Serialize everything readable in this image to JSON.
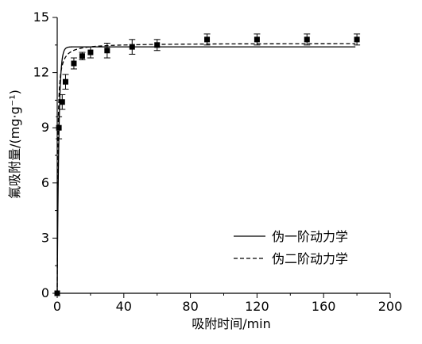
{
  "chart_data": {
    "type": "scatter",
    "xlabel": "吸附时间/min",
    "ylabel": "氟吸附量/(mg·g⁻¹)",
    "xlim": [
      0,
      200
    ],
    "ylim": [
      0,
      15
    ],
    "x_ticks": [
      "0",
      "40",
      "80",
      "120",
      "160",
      "200"
    ],
    "y_ticks": [
      "0",
      "3",
      "6",
      "9",
      "12",
      "15"
    ],
    "grid": false,
    "legend_position": "bottom-right",
    "series": [
      {
        "kind": "points",
        "marker": "square",
        "x": [
          0,
          1,
          3,
          5,
          10,
          15,
          20,
          30,
          45,
          60,
          90,
          120,
          150,
          180
        ],
        "y": [
          0,
          9.0,
          10.4,
          11.5,
          12.5,
          12.9,
          13.1,
          13.2,
          13.4,
          13.5,
          13.8,
          13.8,
          13.8,
          13.8
        ],
        "err": [
          0,
          0.6,
          0.4,
          0.4,
          0.3,
          0.2,
          0.3,
          0.4,
          0.4,
          0.3,
          0.3,
          0.3,
          0.3,
          0.3
        ]
      },
      {
        "kind": "line",
        "name": "伪一阶动力学",
        "style": "solid",
        "model": "pfo",
        "qe": 13.4,
        "k": 1.0
      },
      {
        "kind": "line",
        "name": "伪二阶动力学",
        "style": "dashed",
        "model": "pso",
        "qe": 13.6,
        "k": 0.25
      }
    ]
  }
}
